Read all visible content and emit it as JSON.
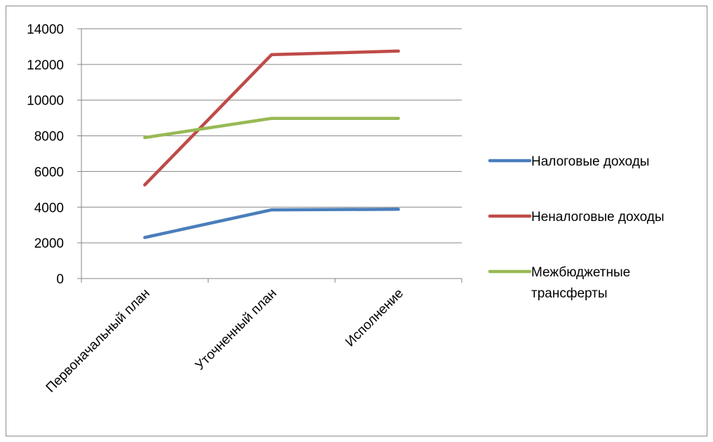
{
  "chart_data": {
    "type": "line",
    "title": "",
    "xlabel": "",
    "ylabel": "",
    "categories": [
      "Первоначальный план",
      "Уточненный план",
      "Исполнение"
    ],
    "ylim": [
      0,
      14000
    ],
    "yticks": [
      0,
      2000,
      4000,
      6000,
      8000,
      10000,
      12000,
      14000
    ],
    "grid": true,
    "legend_position": "right",
    "series": [
      {
        "name": "Налоговые доходы",
        "color": "#4a7ebb",
        "values": [
          2300,
          3850,
          3880
        ]
      },
      {
        "name": "Неналоговые доходы",
        "color": "#be4b48",
        "values": [
          5250,
          12550,
          12750
        ]
      },
      {
        "name": "Межбюджетные трансферты",
        "legend_lines": [
          "Межбюджетные",
          "трансферты"
        ],
        "color": "#98b954",
        "values": [
          7900,
          8980,
          8980
        ]
      }
    ]
  }
}
